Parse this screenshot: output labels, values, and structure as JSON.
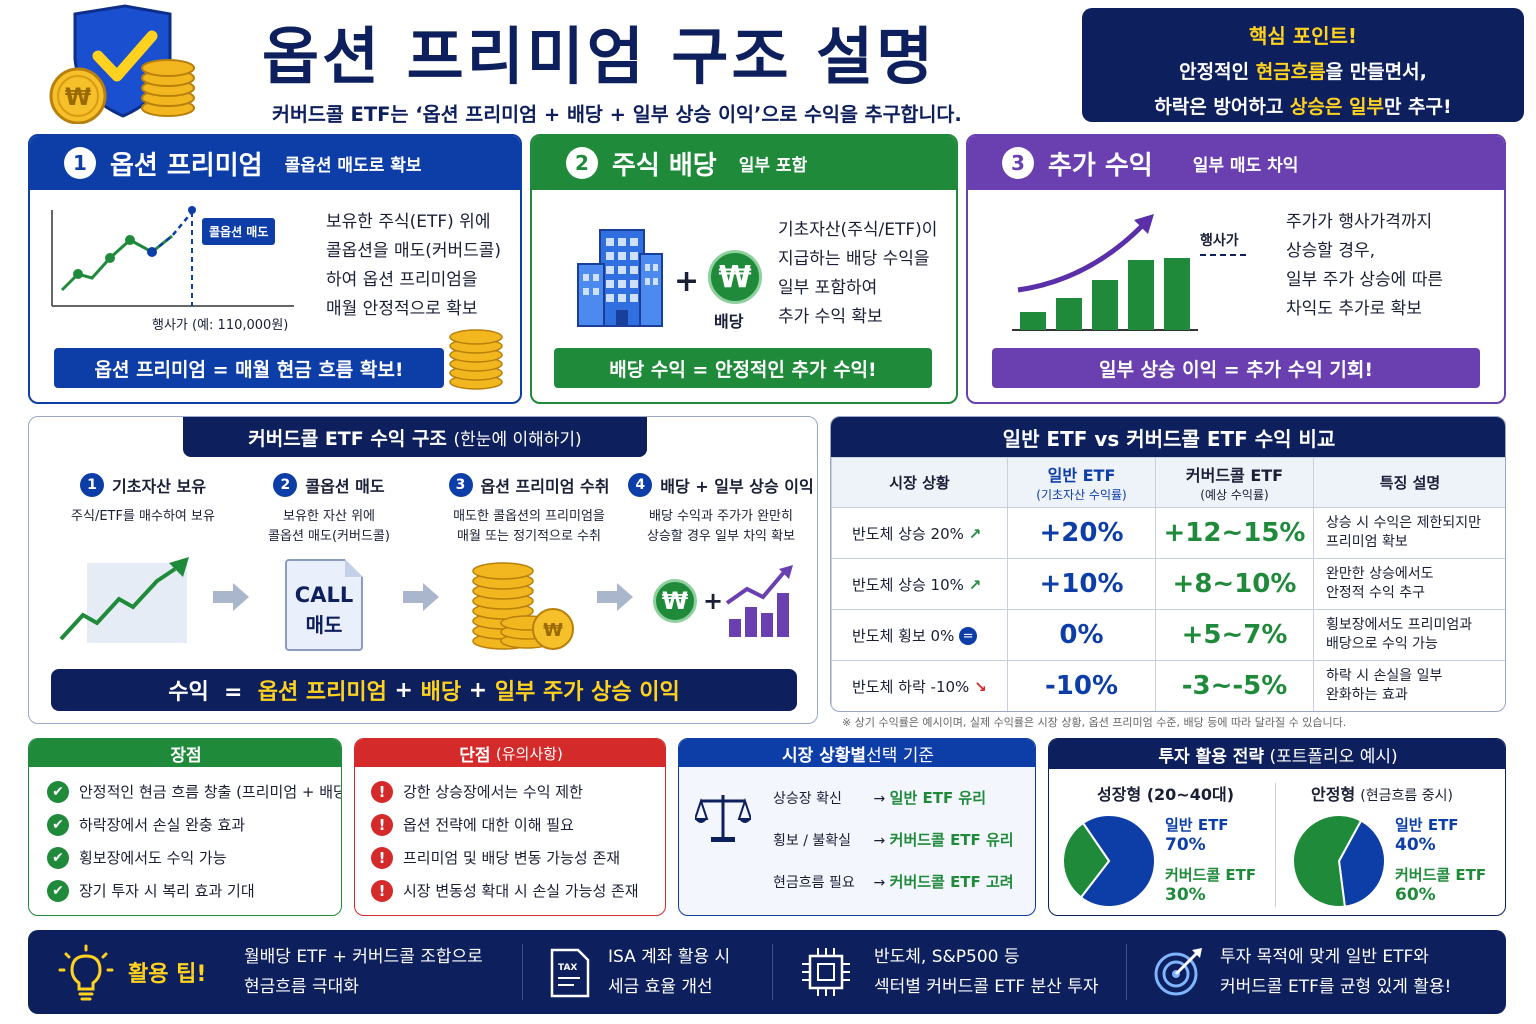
{
  "header": {
    "title": "옵션 프리미엄 구조 설명",
    "subtitle": "커버드콜 ETF는 ‘옵션 프리미엄 + 배당 + 일부 상승 이익’으로 수익을 추구합니다.",
    "key_point": {
      "title": "핵심 포인트!",
      "line1_a": "안정적인 ",
      "line1_hl": "현금흐름",
      "line1_b": "을 만들면서,",
      "line2_a": "하락은 방어하고 ",
      "line2_hl": "상승은 일부",
      "line2_b": "만 추구!"
    }
  },
  "cards": [
    {
      "num": "1",
      "title": "옵션 프리미엄",
      "sub": "콜옵션 매도로 확보",
      "chart_tag": "콜옵션 매도",
      "chart_caption": "행사가 (예: 110,000원)",
      "body": [
        "보유한 주식(ETF) 위에",
        "콜옵션을 매도(커버드콜)",
        "하여 옵션 프리미엄을",
        "매월 안정적으로 확보"
      ],
      "pill": "옵션 프리미엄 = 매월 현금 흐름 확보!"
    },
    {
      "num": "2",
      "title": "주식 배당",
      "sub": "일부 포함",
      "won_label": "배당",
      "won_symbol": "₩",
      "body": [
        "기초자산(주식/ETF)이",
        "지급하는 배당 수익을",
        "일부 포함하여",
        "추가 수익 확보"
      ],
      "pill": "배당 수익 = 안정적인 추가 수익!"
    },
    {
      "num": "3",
      "title": "추가 수익",
      "sub": "일부 매도 차익",
      "strike_label": "행사가",
      "body": [
        "주가가 행사가격까지",
        "상승할 경우,",
        "일부 주가 상승에 따른",
        "차익도 추가로 확보"
      ],
      "pill": "일부 상승 이익 = 추가 수익 기회!"
    }
  ],
  "structure": {
    "title": "커버드콜 ETF 수익 구조",
    "title_sub": "(한눈에 이해하기)",
    "steps": [
      {
        "num": "1",
        "title": "기초자산 보유",
        "desc": [
          "주식/ETF를 매수하여 보유"
        ]
      },
      {
        "num": "2",
        "title": "콜옵션 매도",
        "desc": [
          "보유한 자산 위에",
          "콜옵션 매도(커버드콜)"
        ]
      },
      {
        "num": "3",
        "title": "옵션 프리미엄 수취",
        "desc": [
          "매도한 콜옵션의 프리미엄을",
          "매월 또는 정기적으로 수취"
        ]
      },
      {
        "num": "4",
        "title": "배당 + 일부 상승 이익",
        "desc": [
          "배당 수익과 주가가 완만히",
          "상승할 경우 일부 차익 확보"
        ]
      }
    ],
    "doc_line1": "CALL",
    "doc_line2": "매도",
    "formula_a": "수익  =  ",
    "formula_b": "옵션 프리미엄",
    "formula_c": " + ",
    "formula_d": "배당",
    "formula_e": " + ",
    "formula_f": "일부 주가 상승 이익"
  },
  "compare": {
    "title": "일반 ETF vs 커버드콜 ETF 수익 비교",
    "headers": [
      "시장 상황",
      "일반 ETF",
      "(기초자산 수익률)",
      "커버드콜 ETF",
      "(예상 수익률)",
      "특징 설명"
    ],
    "rows": [
      {
        "market": "반도체 상승 20%",
        "general": "+20%",
        "covered": "+12~15%",
        "note": [
          "상승 시 수익은 제한되지만",
          "프리미엄 확보"
        ]
      },
      {
        "market": "반도체 상승 10%",
        "general": "+10%",
        "covered": "+8~10%",
        "note": [
          "완만한 상승에서도",
          "안정적 수익 추구"
        ]
      },
      {
        "market": "반도체 횡보 0%",
        "general": "0%",
        "covered": "+5~7%",
        "note": [
          "횡보장에서도 프리미엄과",
          "배당으로 수익 가능"
        ]
      },
      {
        "market": "반도체 하락 -10%",
        "general": "-10%",
        "covered": "-3~-5%",
        "note": [
          "하락 시 손실을 일부",
          "완화하는 효과"
        ]
      }
    ],
    "footnote": "※ 상기 수익률은 예시이며, 실제 수익률은 시장 상황, 옵션 프리미엄 수준, 배당 등에 따라 달라질 수 있습니다."
  },
  "pros": {
    "title": "장점",
    "items": [
      "안정적인 현금 흐름 창출 (프리미엄 + 배당)",
      "하락장에서 손실 완충 효과",
      "횡보장에서도 수익 가능",
      "장기 투자 시 복리 효과 기대"
    ]
  },
  "cons": {
    "title": "단점",
    "title_sub": "(유의사항)",
    "items": [
      "강한 상승장에서는 수익 제한",
      "옵션 전략에 대한 이해 필요",
      "프리미엄 및 배당 변동 가능성 존재",
      "시장 변동성 확대 시 손실 가능성 존재"
    ]
  },
  "selection": {
    "title_a": "시장 상황별 ",
    "title_b": "선택 기준",
    "rows": [
      {
        "cond": "상승장 확신",
        "arrow": "→",
        "pick": "일반 ETF 유리"
      },
      {
        "cond": "횡보 / 불확실",
        "arrow": "→",
        "pick": "커버드콜 ETF 유리"
      },
      {
        "cond": "현금흐름 필요",
        "arrow": "→",
        "pick": "커버드콜 ETF 고려"
      }
    ]
  },
  "strategy": {
    "title": "투자 활용 전략",
    "title_sub": "(포트폴리오 예시)",
    "growth": {
      "title": "성장형 (20~40대)",
      "g_label": "일반 ETF",
      "g_val": "70%",
      "c_label": "커버드콜 ETF",
      "c_val": "30%"
    },
    "stable": {
      "title": "안정형",
      "title_sub": "(현금흐름 중시)",
      "g_label": "일반 ETF",
      "g_val": "40%",
      "c_label": "커버드콜 ETF",
      "c_val": "60%"
    }
  },
  "chart_data": [
    {
      "type": "pie",
      "title": "성장형 (20~40대)",
      "categories": [
        "일반 ETF",
        "커버드콜 ETF"
      ],
      "values": [
        70,
        30
      ]
    },
    {
      "type": "pie",
      "title": "안정형 (현금흐름 중시)",
      "categories": [
        "일반 ETF",
        "커버드콜 ETF"
      ],
      "values": [
        40,
        60
      ]
    }
  ],
  "tips": {
    "label": "활용 팁!",
    "items": [
      {
        "l1": "월배당 ETF + 커버드콜 조합으로",
        "l2": "현금흐름 극대화"
      },
      {
        "l1": "ISA 계좌 활용 시",
        "l2": "세금 효율 개선"
      },
      {
        "l1": "반도체, S&P500 등",
        "l2": "섹터별 커버드콜 ETF 분산 투자"
      },
      {
        "l1": "투자 목적에 맞게 일반 ETF와",
        "l2": "커버드콜 ETF를 균형 있게 활용!"
      }
    ]
  },
  "colors": {
    "navy": "#0d1f5c",
    "blue": "#0d3ea8",
    "green": "#1e8a3a",
    "purple": "#6a3fb0",
    "red": "#d42a2a",
    "yellow": "#ffd21f",
    "gold": "#e9a81a"
  }
}
